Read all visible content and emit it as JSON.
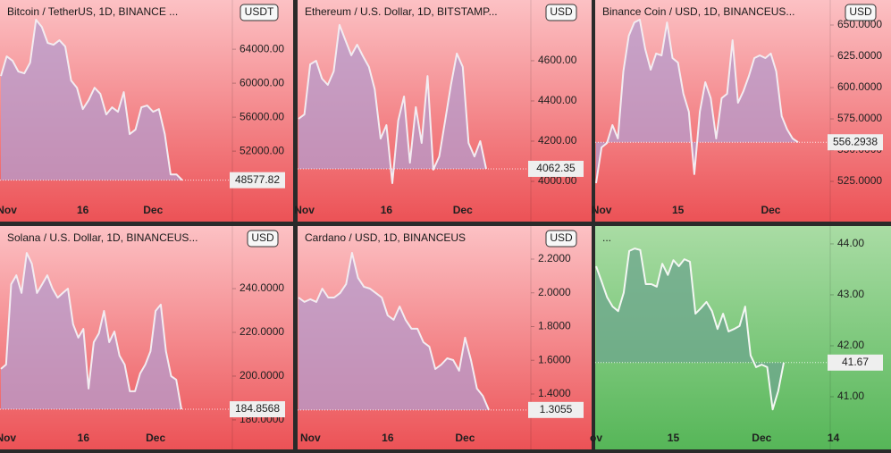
{
  "chart_data": [
    {
      "type": "line",
      "title": "Bitcoin / TetherUS, 1D, BINANCE ...",
      "currency": "USDT",
      "categories": [
        null,
        "Nov",
        null,
        null,
        null,
        null,
        null,
        null,
        null,
        null,
        null,
        null,
        null,
        null,
        "16",
        null,
        null,
        null,
        null,
        null,
        null,
        null,
        null,
        null,
        null,
        null,
        "Dec",
        null,
        null,
        null,
        null,
        null
      ],
      "values": [
        60840,
        63160,
        62630,
        61370,
        61160,
        62420,
        67470,
        66630,
        64740,
        64530,
        65050,
        64320,
        60320,
        59470,
        56950,
        58000,
        59470,
        58740,
        56320,
        57160,
        56630,
        58950,
        54000,
        54530,
        57160,
        57370,
        56630,
        56950,
        54000,
        49260,
        49260,
        48577.82
      ],
      "last_price": 48577.82,
      "ylim": [
        43700,
        69800
      ],
      "yticks": [
        {
          "value": 52000,
          "label": "52000.00"
        },
        {
          "value": 56000,
          "label": "56000.00"
        },
        {
          "value": 60000,
          "label": "60000.00"
        },
        {
          "value": 64000,
          "label": "64000.00"
        }
      ],
      "color": "#f3ecf1",
      "fill": "#b59ccd",
      "background": [
        "#fcc1c4",
        "#ec5256"
      ]
    },
    {
      "type": "line",
      "title": "Ethereum / U.S. Dollar, 1D, BITSTAMP...",
      "currency": "USD",
      "categories": [
        null,
        "Nov",
        null,
        null,
        null,
        null,
        null,
        null,
        null,
        null,
        null,
        null,
        null,
        null,
        null,
        "16",
        null,
        null,
        null,
        null,
        null,
        null,
        null,
        null,
        null,
        null,
        null,
        null,
        "Dec",
        null,
        null,
        null,
        null
      ],
      "values": [
        4311,
        4333,
        4582,
        4600,
        4511,
        4480,
        4547,
        4778,
        4702,
        4627,
        4680,
        4622,
        4569,
        4458,
        4213,
        4280,
        3991,
        4302,
        4422,
        4093,
        4369,
        4191,
        4524,
        4058,
        4124,
        4302,
        4480,
        4636,
        4569,
        4191,
        4124,
        4200,
        4062.35
      ],
      "last_price": 4062.35,
      "ylim": [
        3800,
        4902
      ],
      "yticks": [
        {
          "value": 4000,
          "label": "4000.00"
        },
        {
          "value": 4200,
          "label": "4200.00"
        },
        {
          "value": 4400,
          "label": "4400.00"
        },
        {
          "value": 4600,
          "label": "4600.00"
        }
      ],
      "color": "#f3ecf1",
      "fill": "#b59ccd",
      "background": [
        "#fcc1c4",
        "#ec5256"
      ]
    },
    {
      "type": "line",
      "title": "Binance Coin / USD, 1D, BINANCEUS...",
      "currency": "USD",
      "categories": [
        null,
        "Nov",
        null,
        null,
        null,
        null,
        null,
        null,
        null,
        null,
        null,
        null,
        null,
        null,
        null,
        "15",
        null,
        null,
        null,
        null,
        null,
        null,
        null,
        null,
        null,
        null,
        null,
        null,
        null,
        null,
        null,
        null,
        "Dec",
        null,
        null,
        null,
        null,
        null
      ],
      "values": [
        523.6,
        552.2,
        555.7,
        570.0,
        559.3,
        612.9,
        641.4,
        652.1,
        654.3,
        630.7,
        614.3,
        627.2,
        625.7,
        652.1,
        623.6,
        620.0,
        595.0,
        580.7,
        530.8,
        580.7,
        604.3,
        591.5,
        559.3,
        591.5,
        595.0,
        637.9,
        587.9,
        597.2,
        609.3,
        623.6,
        625.7,
        623.6,
        627.2,
        612.9,
        577.2,
        566.5,
        559.3,
        556.2938
      ],
      "last_price": 556.2938,
      "ylim": [
        492.9,
        670
      ],
      "yticks": [
        {
          "value": 525,
          "label": "525.0000"
        },
        {
          "value": 550,
          "label": "550.0000"
        },
        {
          "value": 575,
          "label": "575.0000"
        },
        {
          "value": 600,
          "label": "600.0000"
        },
        {
          "value": 625,
          "label": "625.0000"
        },
        {
          "value": 650,
          "label": "650.0000"
        }
      ],
      "color": "#f3ecf1",
      "fill": "#b59ccd",
      "background": [
        "#fcc1c4",
        "#ec5256"
      ]
    },
    {
      "type": "line",
      "title": "Solana / U.S. Dollar, 1D, BINANCEUS...",
      "currency": "USD",
      "categories": [
        null,
        "Nov",
        null,
        null,
        null,
        null,
        null,
        null,
        null,
        null,
        null,
        null,
        null,
        null,
        null,
        null,
        "16",
        null,
        null,
        null,
        null,
        null,
        null,
        null,
        null,
        null,
        null,
        null,
        null,
        null,
        "Dec",
        null,
        null,
        null,
        null,
        null
      ],
      "values": [
        203.3,
        205.3,
        242.0,
        246.1,
        238.0,
        256.3,
        251.4,
        238.0,
        242.0,
        246.1,
        240.0,
        235.9,
        238.0,
        240.0,
        223.7,
        217.6,
        221.6,
        194.3,
        215.5,
        219.6,
        229.8,
        215.5,
        220.4,
        209.4,
        205.3,
        193.1,
        193.1,
        201.2,
        205.3,
        211.4,
        229.8,
        232.7,
        211.4,
        200.0,
        198.4,
        184.8568
      ],
      "last_price": 184.8568,
      "ylim": [
        166.5,
        268.6
      ],
      "yticks": [
        {
          "value": 180,
          "label": "180.0000"
        },
        {
          "value": 200,
          "label": "200.0000"
        },
        {
          "value": 220,
          "label": "220.0000"
        },
        {
          "value": 240,
          "label": "240.0000"
        }
      ],
      "color": "#f3ecf1",
      "fill": "#b59ccd",
      "background": [
        "#fcc1c4",
        "#ec5256"
      ]
    },
    {
      "type": "line",
      "title": "Cardano / USD, 1D, BINANCEUS",
      "currency": "USD",
      "categories": [
        null,
        null,
        "Nov",
        null,
        null,
        null,
        null,
        null,
        null,
        null,
        null,
        null,
        null,
        null,
        null,
        "16",
        null,
        null,
        null,
        null,
        null,
        null,
        null,
        null,
        null,
        null,
        null,
        null,
        "Dec",
        null,
        null,
        null,
        null
      ],
      "values": [
        1.972,
        1.946,
        1.962,
        1.946,
        2.025,
        1.972,
        1.972,
        1.999,
        2.052,
        2.237,
        2.089,
        2.036,
        2.025,
        1.999,
        1.972,
        1.866,
        1.84,
        1.919,
        1.84,
        1.787,
        1.787,
        1.707,
        1.681,
        1.548,
        1.575,
        1.612,
        1.601,
        1.538,
        1.734,
        1.601,
        1.432,
        1.389,
        1.3055
      ],
      "last_price": 1.3055,
      "ylim": [
        1.0714,
        2.396
      ],
      "yticks": [
        {
          "value": 1.4,
          "label": "1.4000"
        },
        {
          "value": 1.6,
          "label": "1.6000"
        },
        {
          "value": 1.8,
          "label": "1.8000"
        },
        {
          "value": 2,
          "label": "2.0000"
        },
        {
          "value": 2.2,
          "label": "2.2000"
        }
      ],
      "color": "#f3ecf1",
      "fill": "#b59ccd",
      "background": [
        "#fcc1c4",
        "#ec5256"
      ]
    },
    {
      "type": "line",
      "title": "...",
      "categories": [
        "ov",
        null,
        null,
        null,
        null,
        null,
        null,
        null,
        null,
        null,
        null,
        null,
        null,
        null,
        "15",
        null,
        null,
        null,
        null,
        null,
        null,
        null,
        null,
        null,
        null,
        null,
        null,
        null,
        null,
        null,
        "Dec",
        null,
        null,
        null,
        null,
        null,
        null,
        null,
        null,
        null,
        null,
        null,
        null,
        "14"
      ],
      "values": [
        43.56,
        43.26,
        42.95,
        42.77,
        42.68,
        43.04,
        43.86,
        43.91,
        43.88,
        43.21,
        43.21,
        43.16,
        43.61,
        43.39,
        43.68,
        43.56,
        43.7,
        43.65,
        42.63,
        42.74,
        42.86,
        42.68,
        42.33,
        42.63,
        42.28,
        42.33,
        42.39,
        42.77,
        41.81,
        41.58,
        41.63,
        41.58,
        40.75,
        41.11,
        41.67,
        null,
        null,
        null,
        null,
        null,
        null,
        null,
        null,
        null
      ],
      "last_price": 41.67,
      "ylim": [
        39.965,
        44.35
      ],
      "yticks": [
        {
          "value": 41,
          "label": "41.00"
        },
        {
          "value": 42,
          "label": "42.00"
        },
        {
          "value": 43,
          "label": "43.00"
        },
        {
          "value": 44,
          "label": "44.00"
        }
      ],
      "color": "#f4f7f3",
      "fill": "#6ea58e",
      "background": [
        "#a9dca4",
        "#56b658"
      ]
    }
  ]
}
